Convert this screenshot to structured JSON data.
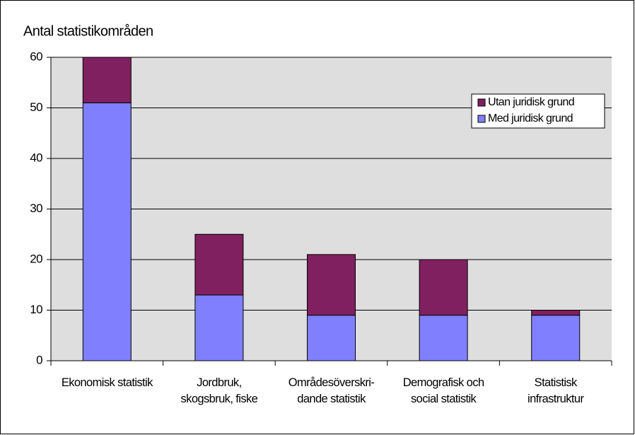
{
  "chart_data": {
    "type": "stacked-bar",
    "y_label": "Antal statistikområden",
    "categories": [
      "Ekonomisk statistik",
      "Jordbruk,\nskogsbruk, fiske",
      "Områdesöverskri-\ndande statistik",
      "Demografisk och\nsocial statistik",
      "Statistisk\ninfrastruktur"
    ],
    "series": [
      {
        "name": "Med juridisk grund",
        "color": "#8080ff",
        "values": [
          51,
          13,
          9,
          9,
          9
        ]
      },
      {
        "name": "Utan juridisk grund",
        "color": "#802060",
        "values": [
          9,
          12,
          12,
          11,
          1
        ]
      }
    ],
    "ylim": [
      0,
      60
    ],
    "yticks": [
      0,
      10,
      20,
      30,
      40,
      50,
      60
    ],
    "grid": true,
    "legend": "upper right"
  }
}
